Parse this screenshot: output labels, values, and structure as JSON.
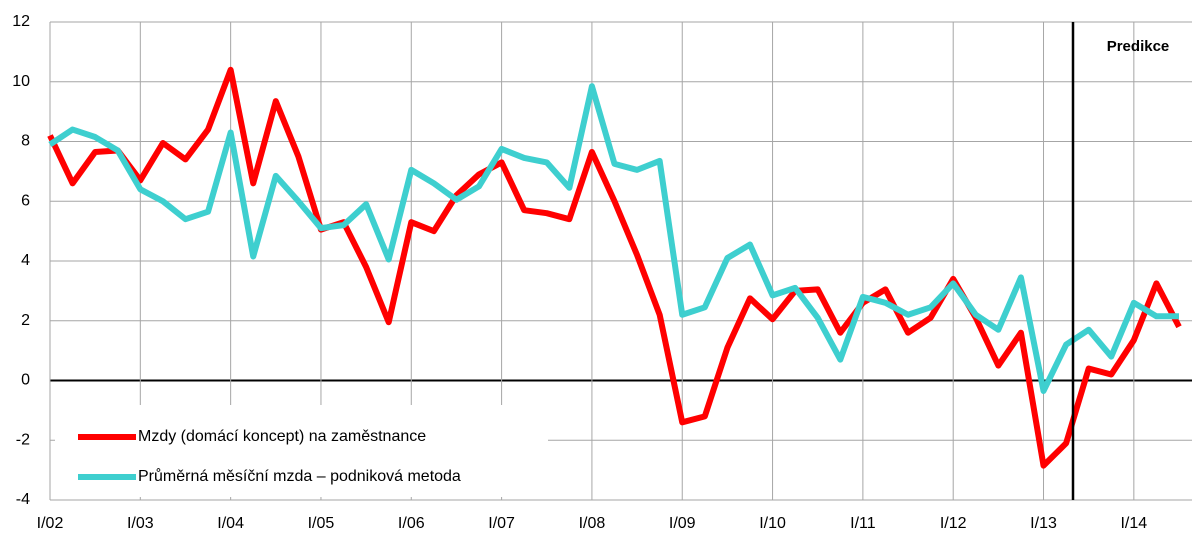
{
  "chart_data": {
    "type": "line",
    "categories": [
      "I/02",
      null,
      null,
      null,
      "I/03",
      null,
      null,
      null,
      "I/04",
      null,
      null,
      null,
      "I/05",
      null,
      null,
      null,
      "I/06",
      null,
      null,
      null,
      "I/07",
      null,
      null,
      null,
      "I/08",
      null,
      null,
      null,
      "I/09",
      null,
      null,
      null,
      "I/10",
      null,
      null,
      null,
      "I/11",
      null,
      null,
      null,
      "I/12",
      null,
      null,
      null,
      "I/13",
      null,
      null,
      null,
      "I/14",
      null,
      null
    ],
    "series": [
      {
        "name": "Mzdy (domácí koncept) na zaměstnance",
        "color": "#ff0000",
        "values": [
          8.2,
          6.6,
          7.65,
          7.7,
          6.7,
          7.95,
          7.4,
          8.4,
          10.4,
          6.6,
          9.35,
          7.5,
          5.05,
          5.3,
          3.8,
          1.95,
          5.3,
          5.0,
          6.2,
          6.9,
          7.3,
          5.7,
          5.6,
          5.4,
          7.65,
          6.0,
          4.2,
          2.2,
          -1.4,
          -1.2,
          1.1,
          2.75,
          2.05,
          3.0,
          3.05,
          1.6,
          2.6,
          3.05,
          1.6,
          2.1,
          3.4,
          2.1,
          0.5,
          1.6,
          -2.85,
          -2.1,
          0.4,
          0.2,
          1.35,
          3.25,
          1.8
        ]
      },
      {
        "name": "Průměrná měsíční mzda – podniková metoda",
        "color": "#3ecfcf",
        "values": [
          7.9,
          8.4,
          8.15,
          7.7,
          6.4,
          6.0,
          5.4,
          5.65,
          8.3,
          4.15,
          6.85,
          6.0,
          5.1,
          5.2,
          5.9,
          4.05,
          7.05,
          6.6,
          6.05,
          6.5,
          7.75,
          7.45,
          7.3,
          6.45,
          9.85,
          7.25,
          7.05,
          7.35,
          2.2,
          2.45,
          4.1,
          4.55,
          2.85,
          3.1,
          2.1,
          0.7,
          2.8,
          2.6,
          2.2,
          2.45,
          3.25,
          2.2,
          1.7,
          3.45,
          -0.35,
          1.2,
          1.7,
          0.8,
          2.6,
          2.15,
          2.15
        ]
      }
    ],
    "annotation": "Predikce",
    "ylim": [
      -4,
      12
    ],
    "yticks": [
      -4,
      -2,
      0,
      2,
      4,
      6,
      8,
      10,
      12
    ],
    "grid": true
  }
}
